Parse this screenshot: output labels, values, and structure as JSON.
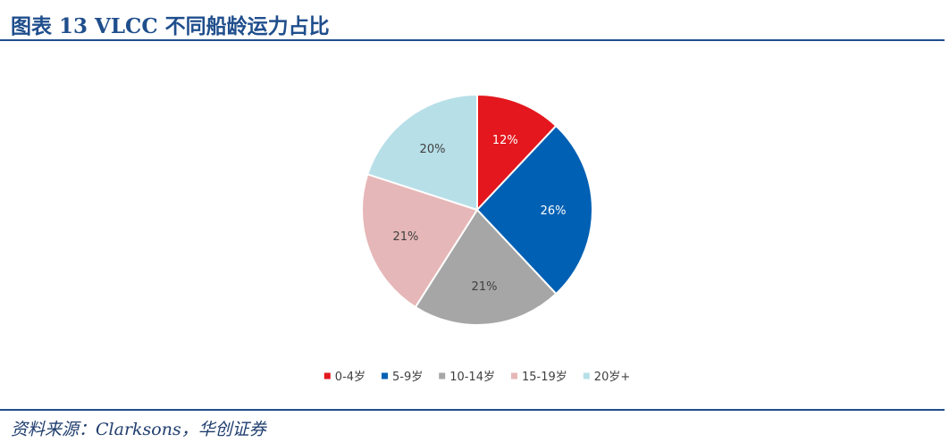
{
  "header": {
    "title": "图表 13   VLCC 不同船龄运力占比"
  },
  "footer": {
    "source": "资料来源：Clarksons，华创证券"
  },
  "chart_data": {
    "type": "pie",
    "categories": [
      "0-4岁",
      "5-9岁",
      "10-14岁",
      "15-19岁",
      "20岁+"
    ],
    "values": [
      12,
      26,
      21,
      21,
      20
    ],
    "data_labels": [
      "12%",
      "26%",
      "21%",
      "21%",
      "20%"
    ],
    "colors": [
      "#e3171d",
      "#0060b4",
      "#a6a6a6",
      "#e6b7b8",
      "#b7dfe8"
    ],
    "label_colors": [
      "#ffffff",
      "#ffffff",
      "#404040",
      "#404040",
      "#404040"
    ],
    "legend_position": "bottom",
    "start_angle": "12 o'clock",
    "direction": "clockwise"
  }
}
